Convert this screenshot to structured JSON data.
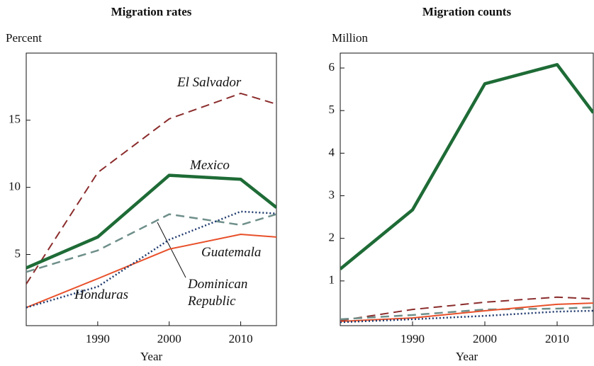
{
  "chart_data": [
    {
      "type": "line",
      "title": "Migration rates",
      "ylabel": "Percent",
      "xlabel": "Year",
      "legend": "inline",
      "x": [
        1980,
        1990,
        2000,
        2010,
        2015
      ],
      "xlim": [
        1980,
        2015
      ],
      "xticks": [
        1990,
        2000,
        2010
      ],
      "ylim": [
        -0.3,
        20
      ],
      "yticks": [
        5,
        10,
        15
      ],
      "series": [
        {
          "name": "El Salvador",
          "color": "#8b2c2c",
          "style": "dashed",
          "linewidth": 2,
          "values": [
            2.8,
            11.1,
            15.1,
            17.0,
            16.2
          ]
        },
        {
          "name": "Mexico",
          "color": "#1e6b36",
          "style": "solid",
          "linewidth": 4.5,
          "values": [
            4.0,
            6.3,
            10.9,
            10.6,
            8.5
          ]
        },
        {
          "name": "Dominican Republic",
          "color": "#6f8f8a",
          "style": "dashed",
          "linewidth": 2.5,
          "values": [
            3.7,
            5.3,
            8.0,
            7.2,
            8.0
          ]
        },
        {
          "name": "Guatemala",
          "color": "#e8502a",
          "style": "solid",
          "linewidth": 2,
          "values": [
            1.05,
            3.2,
            5.4,
            6.5,
            6.3
          ]
        },
        {
          "name": "Honduras",
          "color": "#1f3a6e",
          "style": "dotted",
          "linewidth": 2.5,
          "values": [
            1.05,
            2.6,
            6.1,
            8.2,
            8.05
          ]
        }
      ]
    },
    {
      "type": "line",
      "title": "Migration counts",
      "ylabel": "Million",
      "xlabel": "Year",
      "x": [
        1980,
        1990,
        2000,
        2010,
        2015
      ],
      "xlim": [
        1980,
        2015
      ],
      "xticks": [
        1990,
        2000,
        2010
      ],
      "ylim": [
        -0.05,
        6.35
      ],
      "yticks": [
        1,
        2,
        3,
        4,
        5,
        6
      ],
      "series": [
        {
          "name": "El Salvador",
          "color": "#8b2c2c",
          "style": "dashed",
          "linewidth": 2,
          "values": [
            0.07,
            0.33,
            0.5,
            0.62,
            0.58
          ]
        },
        {
          "name": "Mexico",
          "color": "#1e6b36",
          "style": "solid",
          "linewidth": 4.5,
          "values": [
            1.28,
            2.67,
            5.63,
            6.08,
            4.95
          ]
        },
        {
          "name": "Dominican Republic",
          "color": "#6f8f8a",
          "style": "dashed",
          "linewidth": 2.5,
          "values": [
            0.1,
            0.2,
            0.33,
            0.35,
            0.38
          ]
        },
        {
          "name": "Guatemala",
          "color": "#e8502a",
          "style": "solid",
          "linewidth": 2,
          "values": [
            0.05,
            0.13,
            0.3,
            0.45,
            0.48
          ]
        },
        {
          "name": "Honduras",
          "color": "#1f3a6e",
          "style": "dotted",
          "linewidth": 2.5,
          "values": [
            0.03,
            0.1,
            0.18,
            0.28,
            0.3
          ]
        }
      ]
    }
  ]
}
